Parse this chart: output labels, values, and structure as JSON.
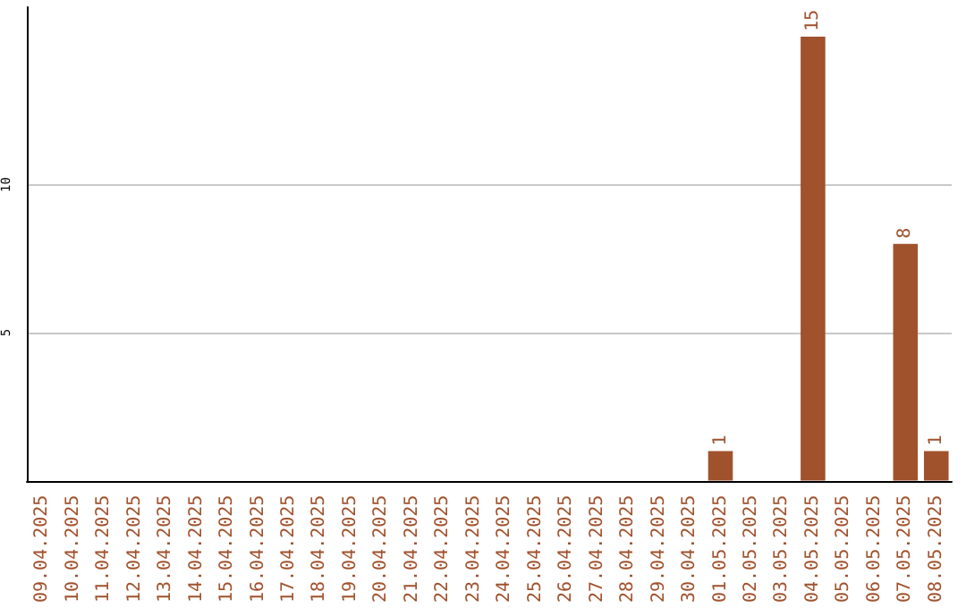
{
  "chart_data": {
    "type": "bar",
    "categories": [
      "09.04.2025",
      "10.04.2025",
      "11.04.2025",
      "12.04.2025",
      "13.04.2025",
      "14.04.2025",
      "15.04.2025",
      "16.04.2025",
      "17.04.2025",
      "18.04.2025",
      "19.04.2025",
      "20.04.2025",
      "21.04.2025",
      "22.04.2025",
      "23.04.2025",
      "24.04.2025",
      "25.04.2025",
      "26.04.2025",
      "27.04.2025",
      "28.04.2025",
      "29.04.2025",
      "30.04.2025",
      "01.05.2025",
      "02.05.2025",
      "03.05.2025",
      "04.05.2025",
      "05.05.2025",
      "06.05.2025",
      "07.05.2025",
      "08.05.2025"
    ],
    "values": [
      0,
      0,
      0,
      0,
      0,
      0,
      0,
      0,
      0,
      0,
      0,
      0,
      0,
      0,
      0,
      0,
      0,
      0,
      0,
      0,
      0,
      0,
      1,
      0,
      0,
      15,
      0,
      0,
      8,
      1
    ],
    "value_labels": [
      null,
      null,
      null,
      null,
      null,
      null,
      null,
      null,
      null,
      null,
      null,
      null,
      null,
      null,
      null,
      null,
      null,
      null,
      null,
      null,
      null,
      null,
      "1",
      null,
      null,
      "15",
      null,
      null,
      "8",
      "1"
    ],
    "color": "#a0522d",
    "ylim": [
      0,
      16
    ],
    "yticks": [
      5,
      10
    ],
    "grid": "y"
  }
}
